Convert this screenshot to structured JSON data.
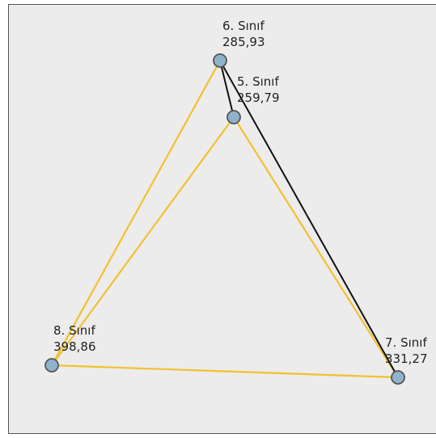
{
  "nodes": [
    {
      "label": "6. Sınıf",
      "value": "285,93"
    },
    {
      "label": "5. Sınıf",
      "value": "259,79"
    },
    {
      "label": "8. Sınıf",
      "value": "398,86"
    },
    {
      "label": "7. Sınıf",
      "value": "331,27"
    }
  ]
}
